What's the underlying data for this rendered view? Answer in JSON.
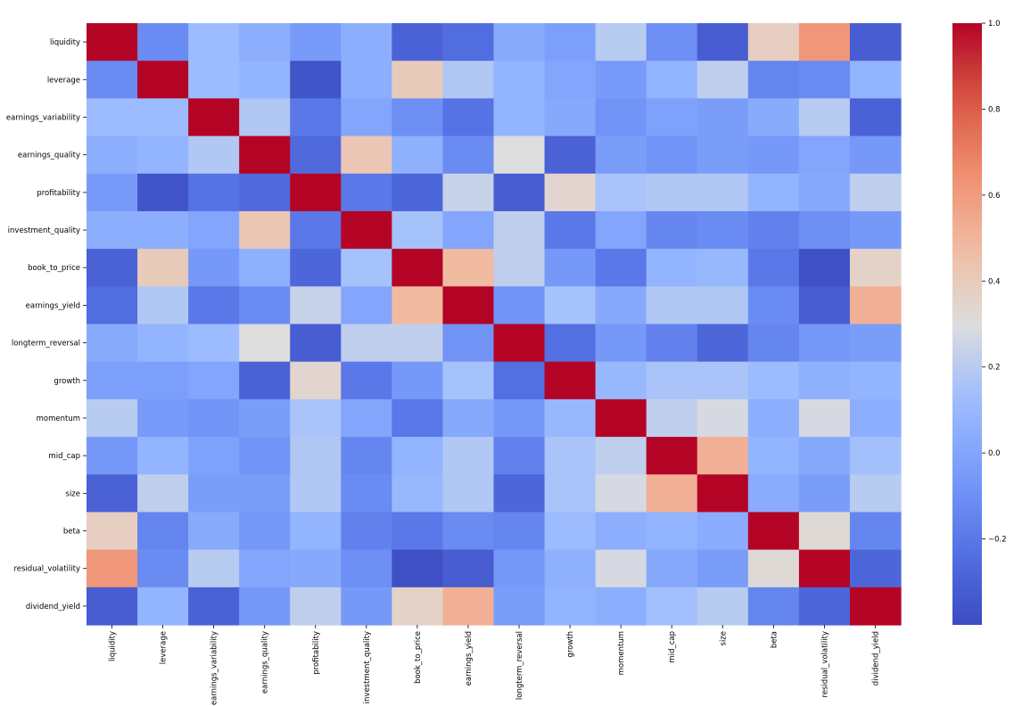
{
  "chart_data": {
    "type": "heatmap",
    "title": "",
    "xlabel": "",
    "ylabel": "",
    "labels": [
      "liquidity",
      "leverage",
      "earnings_variability",
      "earnings_quality",
      "profitability",
      "investment_quality",
      "book_to_price",
      "earnings_yield",
      "longterm_reversal",
      "growth",
      "momentum",
      "mid_cap",
      "size",
      "beta",
      "residual_volatility",
      "dividend_yield"
    ],
    "matrix": [
      [
        1.0,
        -0.12,
        0.12,
        0.05,
        -0.05,
        0.05,
        -0.3,
        -0.25,
        0.03,
        -0.03,
        0.2,
        -0.1,
        -0.32,
        0.38,
        0.62,
        -0.32
      ],
      [
        -0.12,
        1.0,
        0.12,
        0.08,
        -0.36,
        0.05,
        0.4,
        0.18,
        0.08,
        0.0,
        -0.05,
        0.08,
        0.22,
        -0.15,
        -0.12,
        0.08
      ],
      [
        0.12,
        0.12,
        1.0,
        0.18,
        -0.2,
        0.0,
        -0.1,
        -0.22,
        0.08,
        0.02,
        -0.08,
        -0.02,
        -0.04,
        0.03,
        0.2,
        -0.3
      ],
      [
        0.05,
        0.08,
        0.18,
        1.0,
        -0.26,
        0.42,
        0.06,
        -0.12,
        0.3,
        -0.3,
        -0.04,
        -0.08,
        -0.04,
        -0.06,
        0.0,
        -0.06
      ],
      [
        -0.05,
        -0.36,
        -0.22,
        -0.26,
        1.0,
        -0.2,
        -0.28,
        0.24,
        -0.32,
        0.34,
        0.16,
        0.18,
        0.18,
        0.08,
        0.02,
        0.22
      ],
      [
        0.05,
        0.05,
        0.0,
        0.42,
        -0.2,
        1.0,
        0.15,
        0.0,
        0.22,
        -0.2,
        0.0,
        -0.14,
        -0.12,
        -0.16,
        -0.1,
        -0.06
      ],
      [
        -0.3,
        0.4,
        -0.06,
        0.06,
        -0.28,
        0.15,
        1.0,
        0.48,
        0.22,
        -0.06,
        -0.2,
        0.08,
        0.1,
        -0.2,
        -0.38,
        0.36
      ],
      [
        -0.25,
        0.18,
        -0.2,
        -0.12,
        0.24,
        0.0,
        0.48,
        1.0,
        -0.08,
        0.15,
        0.02,
        0.18,
        0.18,
        -0.12,
        -0.32,
        0.52
      ],
      [
        0.03,
        0.08,
        0.12,
        0.3,
        -0.32,
        0.22,
        0.22,
        -0.08,
        1.0,
        -0.24,
        -0.06,
        -0.16,
        -0.28,
        -0.14,
        -0.06,
        -0.04
      ],
      [
        -0.03,
        -0.03,
        0.0,
        -0.3,
        0.34,
        -0.2,
        -0.06,
        0.15,
        -0.24,
        1.0,
        0.1,
        0.16,
        0.16,
        0.12,
        0.06,
        0.08
      ],
      [
        0.2,
        -0.05,
        -0.08,
        -0.04,
        0.16,
        0.0,
        -0.2,
        0.02,
        -0.06,
        0.1,
        1.0,
        0.22,
        0.28,
        0.05,
        0.28,
        0.05
      ],
      [
        -0.06,
        0.08,
        -0.02,
        -0.08,
        0.18,
        -0.14,
        0.08,
        0.18,
        -0.16,
        0.16,
        0.22,
        1.0,
        0.52,
        0.08,
        0.02,
        0.14
      ],
      [
        -0.3,
        0.22,
        -0.04,
        -0.04,
        0.18,
        -0.12,
        0.1,
        0.18,
        -0.28,
        0.16,
        0.28,
        0.52,
        1.0,
        0.04,
        -0.04,
        0.2
      ],
      [
        0.38,
        -0.15,
        0.03,
        -0.06,
        0.08,
        -0.16,
        -0.2,
        -0.12,
        -0.14,
        0.12,
        0.05,
        0.08,
        0.04,
        1.0,
        0.32,
        -0.14
      ],
      [
        0.62,
        -0.12,
        0.2,
        0.0,
        0.02,
        -0.1,
        -0.38,
        -0.32,
        -0.06,
        0.06,
        0.28,
        0.02,
        -0.04,
        0.32,
        1.0,
        -0.28
      ],
      [
        -0.32,
        0.08,
        -0.3,
        -0.06,
        0.22,
        -0.06,
        0.36,
        0.52,
        -0.04,
        0.08,
        0.05,
        0.14,
        0.2,
        -0.14,
        -0.28,
        1.0
      ]
    ],
    "colormap": "coolwarm",
    "vmin": -0.4,
    "vmax": 1.0,
    "colorbar": {
      "ticks": [
        -0.2,
        0.0,
        0.2,
        0.4,
        0.6,
        0.8,
        1.0
      ],
      "tick_labels": [
        "−0.2",
        "0.0",
        "0.2",
        "0.4",
        "0.6",
        "0.8",
        "1.0"
      ]
    },
    "grid": false,
    "legend": "colorbar-right"
  },
  "colors": {
    "cold": "#3b4cc0",
    "neutral": "#dddddd",
    "warm": "#b40426"
  }
}
